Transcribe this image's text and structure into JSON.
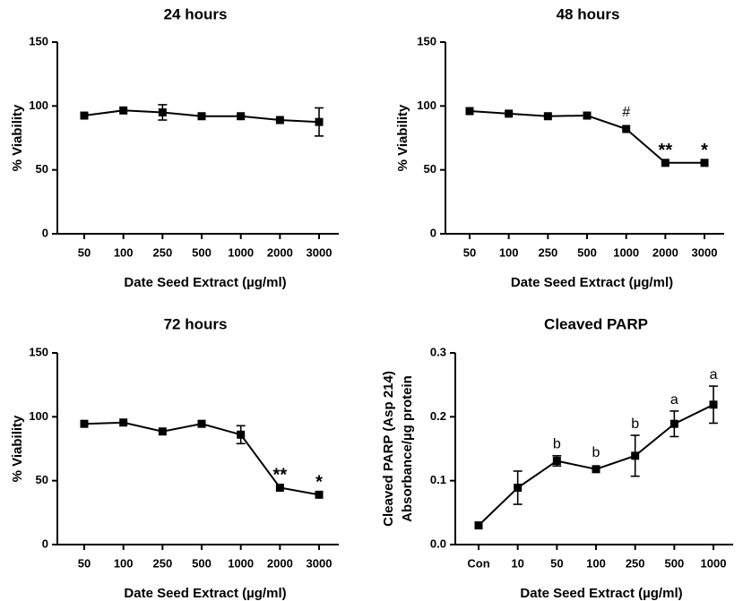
{
  "chart_data": [
    {
      "type": "line",
      "title": "24 hours",
      "xlabel": "Date Seed  Extract (µg/ml)",
      "ylabel": "% Viability",
      "categories": [
        "50",
        "100",
        "250",
        "500",
        "1000",
        "2000",
        "3000"
      ],
      "values": [
        92.5,
        96.5,
        95,
        92,
        92,
        89,
        87.5
      ],
      "errors": [
        3,
        2,
        6,
        2,
        2,
        2,
        11
      ],
      "annotations": [
        "",
        "",
        "",
        "",
        "",
        "",
        ""
      ],
      "ylim": [
        0,
        150
      ],
      "yticks": [
        "0",
        "50",
        "100",
        "150"
      ],
      "ytick_values": [
        0,
        50,
        100,
        150
      ]
    },
    {
      "type": "line",
      "title": "48 hours",
      "xlabel": "Date Seed  Extract (µg/ml)",
      "ylabel": "% Viability",
      "categories": [
        "50",
        "100",
        "250",
        "500",
        "1000",
        "2000",
        "3000"
      ],
      "values": [
        96,
        94,
        92,
        92.5,
        82,
        55.5,
        55.5
      ],
      "errors": [
        1,
        1,
        1.5,
        1,
        1.5,
        1.5,
        1.5
      ],
      "annotations": [
        "",
        "",
        "",
        "",
        "#",
        "**",
        "*"
      ],
      "ylim": [
        0,
        150
      ],
      "yticks": [
        "0",
        "50",
        "100",
        "150"
      ],
      "ytick_values": [
        0,
        50,
        100,
        150
      ]
    },
    {
      "type": "line",
      "title": "72 hours",
      "xlabel": "Date Seed  Extract (µg/ml)",
      "ylabel": "% Viability",
      "categories": [
        "50",
        "100",
        "250",
        "500",
        "1000",
        "2000",
        "3000"
      ],
      "values": [
        94.5,
        95.5,
        88.5,
        94.5,
        86,
        44.5,
        39
      ],
      "errors": [
        1,
        1,
        3,
        1,
        7,
        1.5,
        1.5
      ],
      "annotations": [
        "",
        "",
        "",
        "",
        "",
        "**",
        "*"
      ],
      "ylim": [
        0,
        150
      ],
      "yticks": [
        "0",
        "50",
        "100",
        "150"
      ],
      "ytick_values": [
        0,
        50,
        100,
        150
      ]
    },
    {
      "type": "line",
      "title": "Cleaved PARP",
      "xlabel": "Date Seed  Extract (µg/ml)",
      "ylabel": "Cleaved PARP (Asp 214)",
      "ylabel2": "Absorbance/µg protein",
      "categories": [
        "Con",
        "10",
        "50",
        "100",
        "250",
        "500",
        "1000"
      ],
      "values": [
        0.03,
        0.089,
        0.131,
        0.118,
        0.139,
        0.189,
        0.219
      ],
      "errors": [
        0.003,
        0.026,
        0.008,
        0.004,
        0.032,
        0.02,
        0.029
      ],
      "annotations": [
        "",
        "",
        "b",
        "b",
        "b",
        "a",
        "a"
      ],
      "ylim": [
        0,
        0.3
      ],
      "yticks": [
        "0.0",
        "0.1",
        "0.2",
        "0.3"
      ],
      "ytick_values": [
        0,
        0.1,
        0.2,
        0.3
      ]
    }
  ]
}
